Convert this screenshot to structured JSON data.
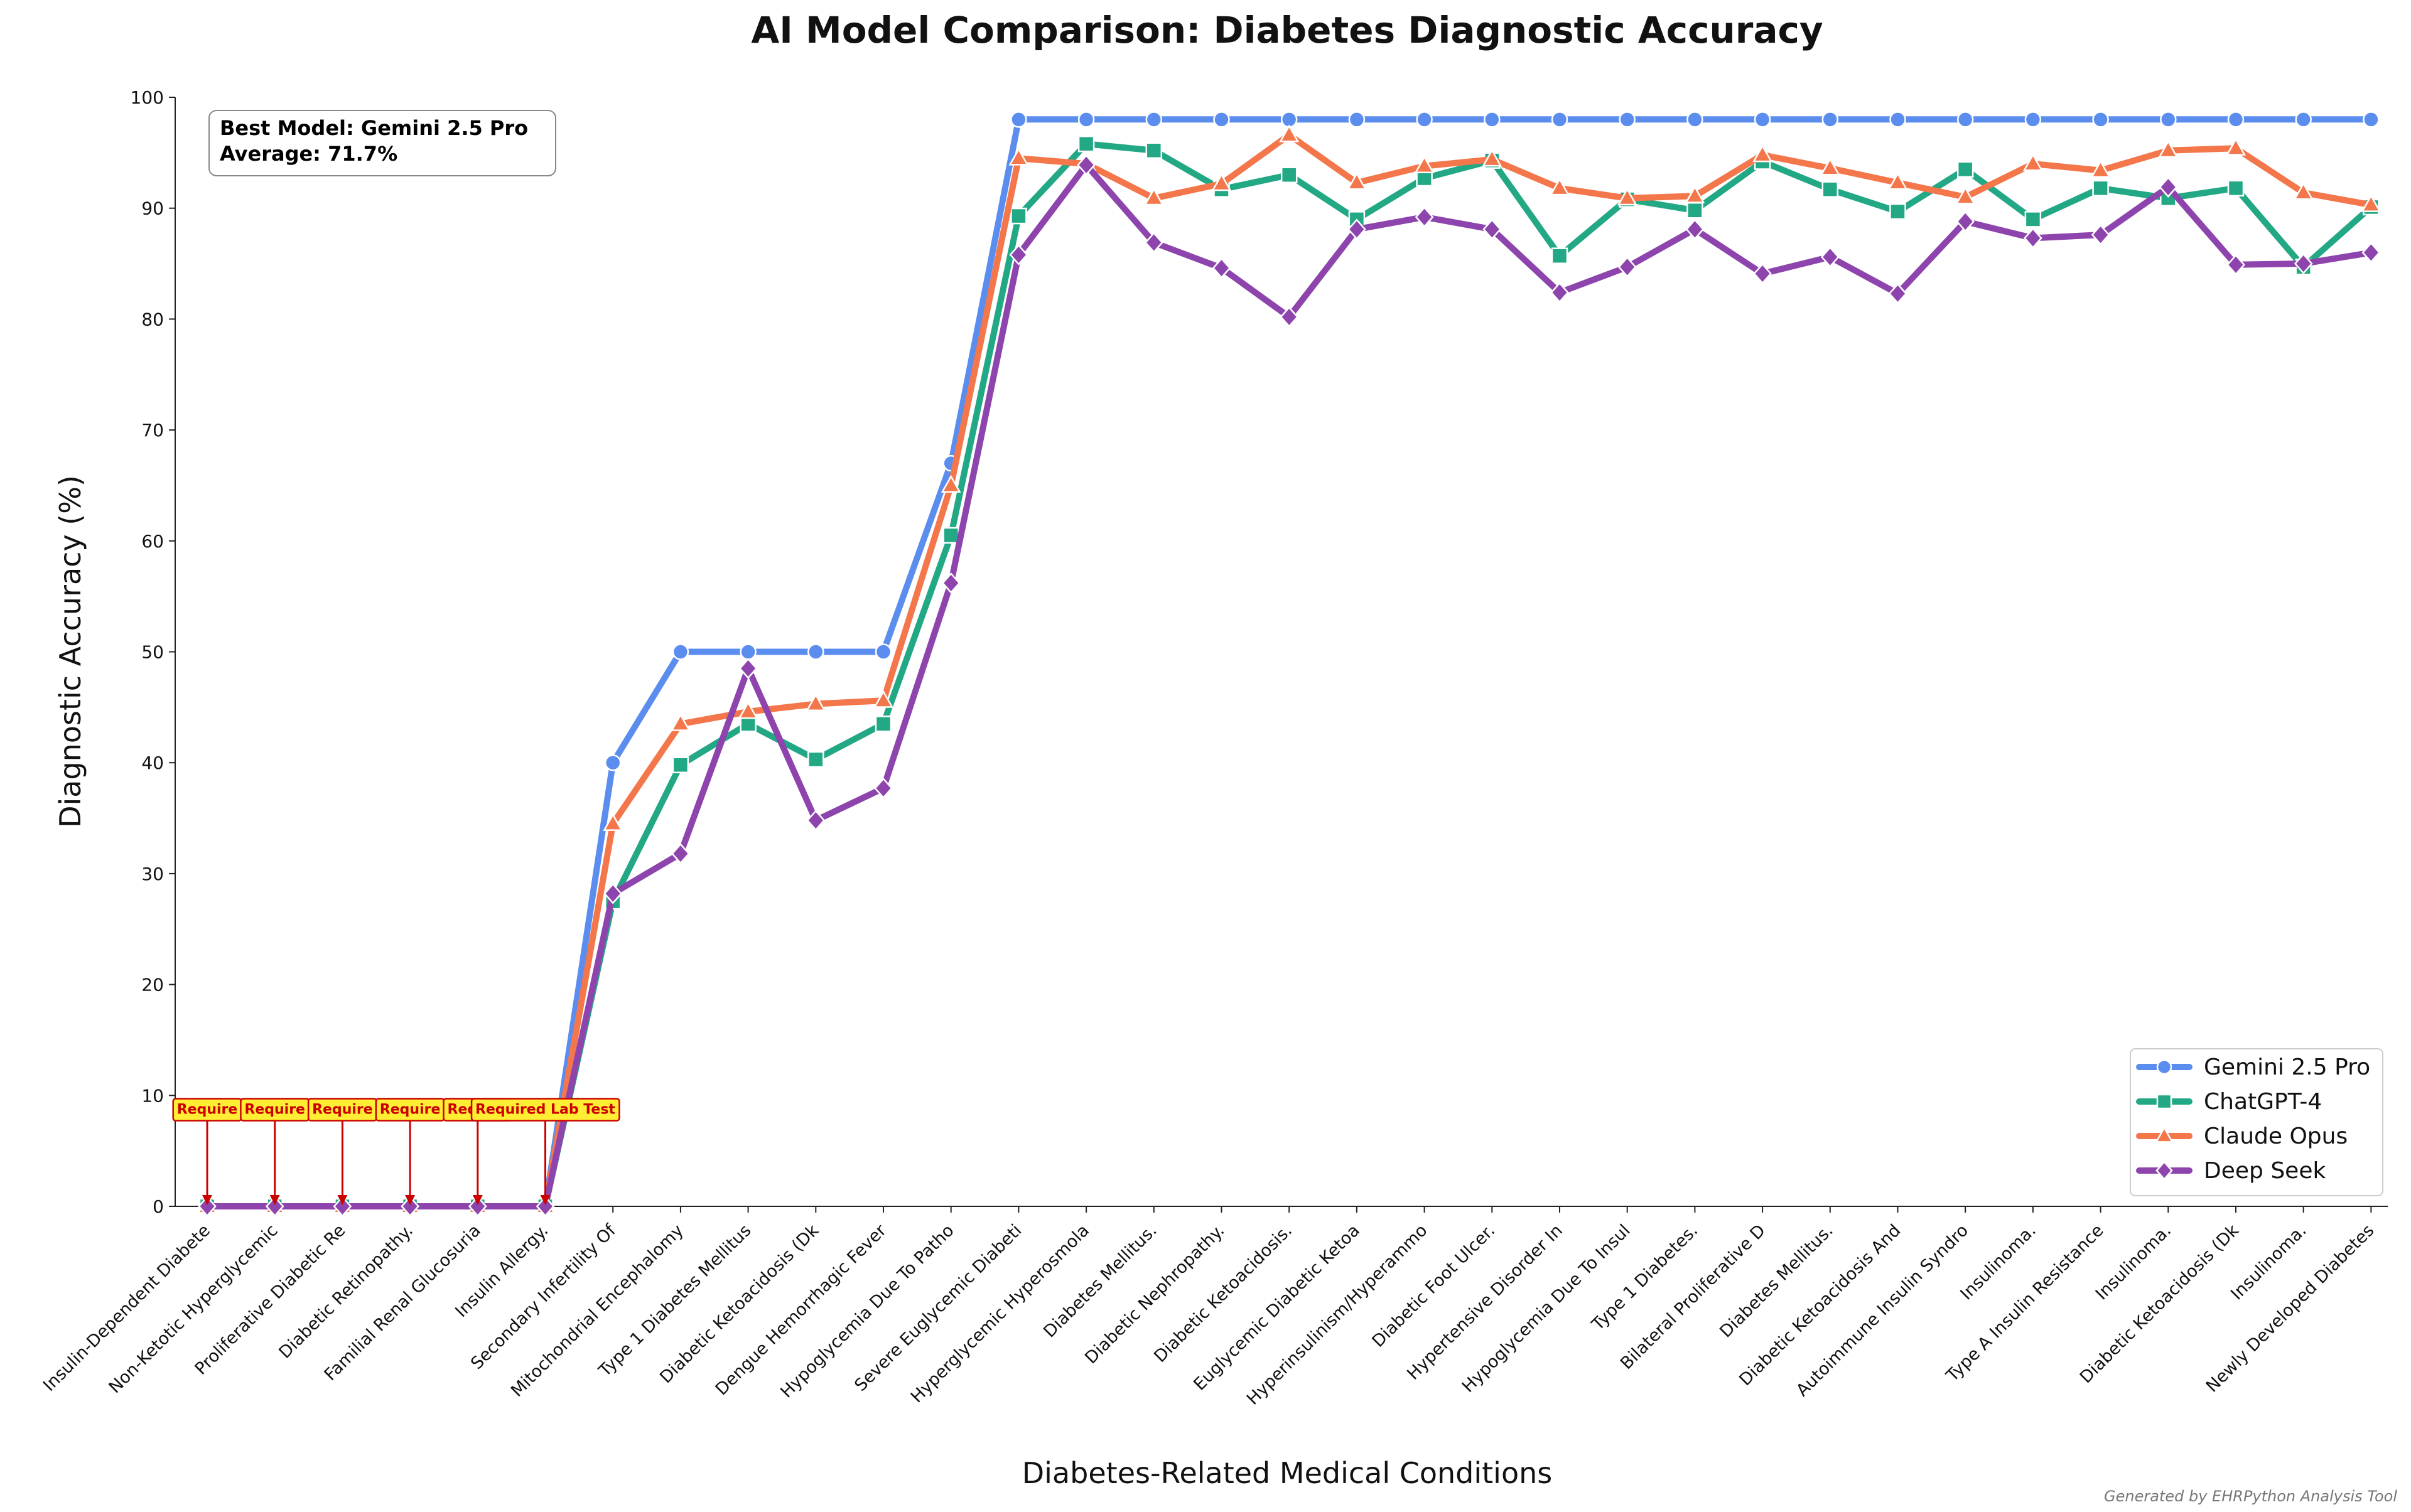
{
  "chart_data": {
    "type": "line",
    "title": "AI Model Comparison: Diabetes Diagnostic Accuracy",
    "xlabel": "Diabetes-Related Medical Conditions",
    "ylabel": "Diagnostic Accuracy (%)",
    "ylim": [
      0,
      100
    ],
    "yticks": [
      0,
      10,
      20,
      30,
      40,
      50,
      60,
      70,
      80,
      90,
      100
    ],
    "grid": false,
    "legend_position": "lower-right",
    "categories": [
      "Insulin-Dependent Diabete",
      "Non-Ketotic Hyperglycemic",
      "Proliferative Diabetic Re",
      "Diabetic Retinopathy.",
      "Familial Renal Glucosuria",
      "Insulin Allergy.",
      "Secondary Infertility Of",
      "Mitochondrial Encephalomy",
      "Type 1 Diabetes Mellitus",
      "Diabetic Ketoacidosis (Dk",
      "Dengue Hemorrhagic Fever",
      "Hypoglycemia Due To Patho",
      "Severe Euglycemic Diabeti",
      "Hyperglycemic Hyperosmola",
      "Diabetes Mellitus.",
      "Diabetic Nephropathy.",
      "Diabetic Ketoacidosis.",
      "Euglycemic Diabetic Ketoa",
      "Hyperinsulinism/Hyperammo",
      "Diabetic Foot Ulcer.",
      "Hypertensive Disorder In",
      "Hypoglycemia Due To Insul",
      "Type 1 Diabetes.",
      "Bilateral Proliferative D",
      "Diabetes Mellitus.",
      "Diabetic Ketoacidosis And",
      "Autoimmune Insulin Syndro",
      "Insulinoma.",
      "Type A Insulin Resistance",
      "Insulinoma.",
      "Diabetic Ketoacidosis (Dk",
      "Insulinoma.",
      "Newly Developed Diabetes"
    ],
    "series": [
      {
        "name": "Gemini 2.5 Pro",
        "color": "#5b8def",
        "marker": "circle",
        "values": [
          0,
          0,
          0,
          0,
          0,
          0,
          40,
          50,
          50,
          50,
          50,
          67,
          98,
          98,
          98,
          98,
          98,
          98,
          98,
          98,
          98,
          98,
          98,
          98,
          98,
          98,
          98,
          98,
          98,
          98,
          98,
          98,
          98
        ]
      },
      {
        "name": "ChatGPT-4",
        "color": "#22a884",
        "marker": "square",
        "values": [
          0,
          0,
          0,
          0,
          0,
          0,
          27.5,
          39.8,
          43.5,
          40.3,
          43.5,
          60.5,
          89.3,
          95.8,
          95.2,
          91.7,
          93,
          89,
          92.7,
          94.3,
          85.7,
          90.8,
          89.8,
          94.2,
          91.7,
          89.7,
          93.5,
          89,
          91.8,
          90.9,
          91.8,
          84.7,
          90.1
        ]
      },
      {
        "name": "Claude Opus",
        "color": "#f4764b",
        "marker": "triangle",
        "values": [
          0,
          0,
          0,
          0,
          0,
          0,
          34.5,
          43.5,
          44.6,
          45.3,
          45.6,
          65,
          94.5,
          94,
          90.9,
          92.2,
          96.6,
          92.3,
          93.8,
          94.4,
          91.8,
          90.9,
          91.1,
          94.8,
          93.6,
          92.3,
          91,
          94,
          93.4,
          95.2,
          95.4,
          91.4,
          90.3
        ]
      },
      {
        "name": "Deep Seek",
        "color": "#8e44ad",
        "marker": "diamond",
        "values": [
          0,
          0,
          0,
          0,
          0,
          0,
          28.2,
          31.8,
          48.5,
          34.8,
          37.7,
          56.2,
          85.8,
          93.9,
          86.9,
          84.6,
          80.2,
          88.1,
          89.2,
          88.1,
          82.4,
          84.7,
          88.1,
          84.1,
          85.6,
          82.3,
          88.8,
          87.3,
          87.6,
          91.9,
          84.9,
          85,
          86
        ]
      }
    ],
    "annotations": {
      "label_full": "Required Lab Test",
      "label_truncated": "Require",
      "truncated_points": [
        0,
        1,
        2,
        3,
        4
      ],
      "full_points": [
        5
      ],
      "color": "#cc0000",
      "box_fill": "#ffee33"
    },
    "summary_box": {
      "line1": "Best Model: Gemini 2.5 Pro",
      "line2": "Average: 71.7%"
    }
  },
  "footer": "Generated by EHRPython Analysis Tool"
}
